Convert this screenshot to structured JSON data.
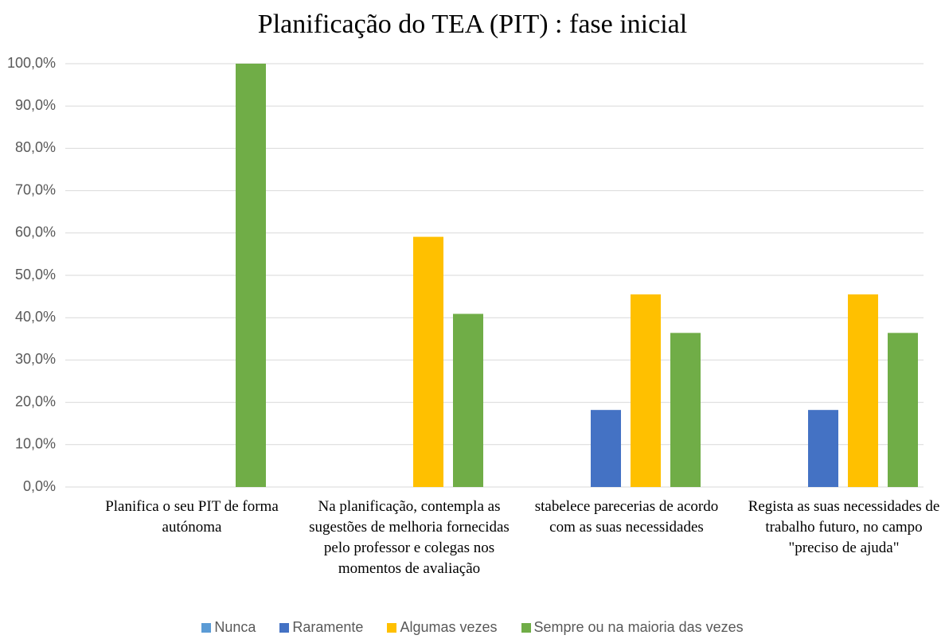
{
  "chart_data": {
    "type": "bar",
    "title": "Planificação do TEA (PIT) : fase inicial",
    "categories": [
      "Planifica o seu PIT de forma autónoma",
      "Na planificação, contempla as sugestões de melhoria fornecidas pelo professor e colegas nos momentos de avaliação",
      "stabelece parecerias de acordo com as suas necessidades",
      "Regista as suas necessidades de trabalho futuro, no campo \"preciso de ajuda\""
    ],
    "series": [
      {
        "name": "Nunca",
        "color": "#5b9bd5",
        "values": [
          0,
          0,
          0,
          0
        ]
      },
      {
        "name": "Raramente",
        "color": "#4472c4",
        "values": [
          0,
          0,
          18.2,
          18.2
        ]
      },
      {
        "name": "Algumas vezes",
        "color": "#ffc000",
        "values": [
          0,
          59.1,
          45.5,
          45.5
        ]
      },
      {
        "name": "Sempre ou na maioria das vezes",
        "color": "#70ad47",
        "values": [
          100,
          40.9,
          36.4,
          36.4
        ]
      }
    ],
    "ylim": [
      0,
      100
    ],
    "yticks": [
      {
        "value": 0,
        "label": "0,0%"
      },
      {
        "value": 10,
        "label": "10,0%"
      },
      {
        "value": 20,
        "label": "20,0%"
      },
      {
        "value": 30,
        "label": "30,0%"
      },
      {
        "value": 40,
        "label": "40,0%"
      },
      {
        "value": 50,
        "label": "50,0%"
      },
      {
        "value": 60,
        "label": "60,0%"
      },
      {
        "value": 70,
        "label": "70,0%"
      },
      {
        "value": 80,
        "label": "80,0%"
      },
      {
        "value": 90,
        "label": "90,0%"
      },
      {
        "value": 100,
        "label": "100,0%"
      }
    ],
    "grid": true,
    "legend": "bottom"
  }
}
